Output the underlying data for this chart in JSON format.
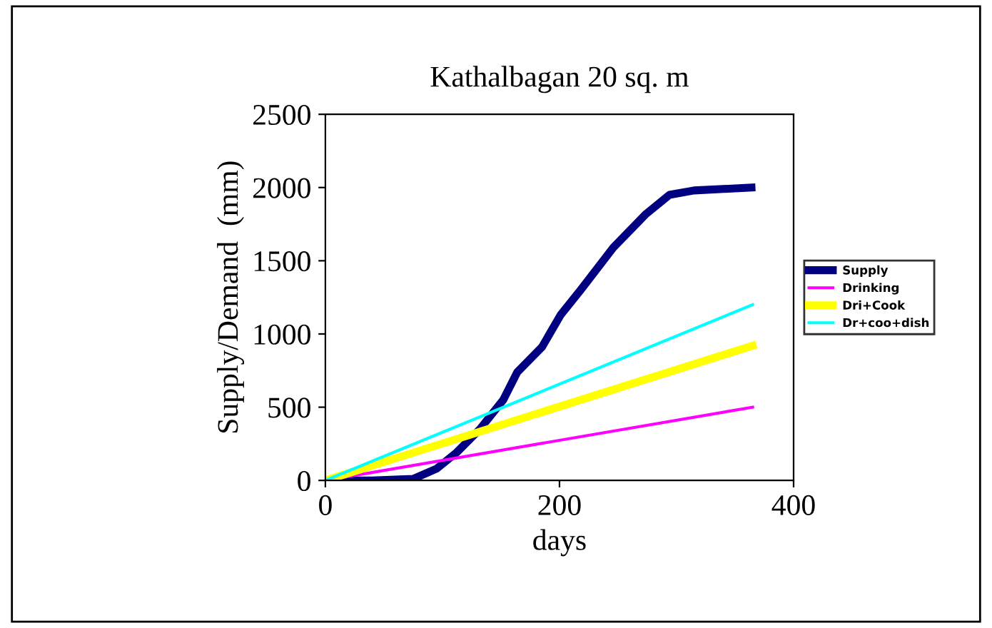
{
  "chart_data": {
    "type": "line",
    "title": "Kathalbagan 20 sq. m",
    "xlabel": "days",
    "ylabel": "Supply/Demand  (mm)",
    "xlim": [
      0,
      400
    ],
    "xticks": [
      0,
      200,
      400
    ],
    "ylim": [
      0,
      2500
    ],
    "yticks": [
      0,
      500,
      1000,
      1500,
      2000,
      2500
    ],
    "grid": false,
    "legend": "right",
    "series": [
      {
        "name": "Supply",
        "color": "#000080",
        "x": [
          0,
          40,
          75,
          95,
          112,
          132,
          152,
          164,
          185,
          201,
          218,
          246,
          274,
          294,
          315,
          340,
          364
        ],
        "values": [
          0,
          0,
          10,
          80,
          190,
          350,
          550,
          740,
          910,
          1130,
          1300,
          1590,
          1820,
          1950,
          1980,
          1990,
          2000
        ]
      },
      {
        "name": "Drinking",
        "color": "#ff00ff",
        "x": [
          0,
          365
        ],
        "values": [
          0,
          500
        ]
      },
      {
        "name": "Dri+Cook",
        "color": "#ffff00",
        "x": [
          0,
          365
        ],
        "values": [
          0,
          920
        ]
      },
      {
        "name": "Dr+coo+dish",
        "color": "#00ffff",
        "x": [
          0,
          365
        ],
        "values": [
          0,
          1200
        ]
      }
    ]
  }
}
